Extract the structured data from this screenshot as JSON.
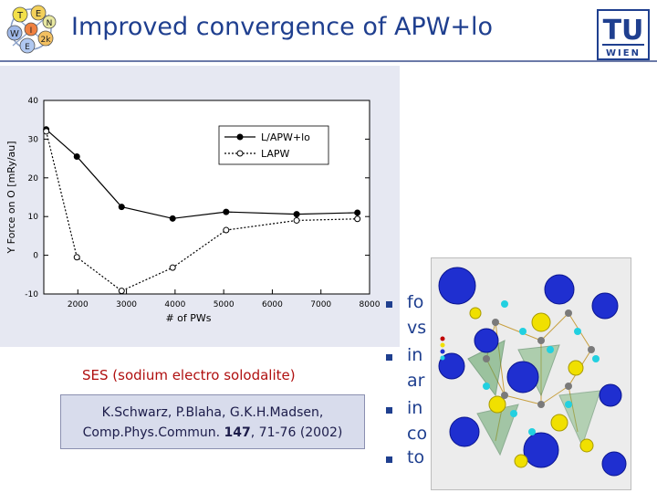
{
  "title": "Improved convergence of APW+lo",
  "chart_data": {
    "type": "line",
    "xlabel": "# of PWs",
    "ylabel": "Y Force on O [mRy/au]",
    "xlim": [
      1300,
      8000
    ],
    "ylim": [
      -10,
      40
    ],
    "xticks": [
      2000,
      3000,
      4000,
      5000,
      6000,
      7000,
      8000
    ],
    "xtick_labels": [
      "2000",
      "3000",
      "4000",
      "5000",
      "6000",
      "7000",
      "8000"
    ],
    "yticks": [
      -10,
      0,
      10,
      20,
      30,
      40
    ],
    "ytick_labels": [
      "-10",
      "0",
      "10",
      "20",
      "30",
      "40"
    ],
    "legend_position": "top-right",
    "series": [
      {
        "name": "L/APW+lo",
        "style": "solid",
        "marker": "filled-circle",
        "color": "#000000",
        "x": [
          1350,
          1980,
          2900,
          3950,
          5050,
          6500,
          7750
        ],
        "y": [
          32.5,
          25.5,
          12.5,
          9.5,
          11.2,
          10.6,
          11.0
        ]
      },
      {
        "name": "LAPW",
        "style": "dotted",
        "marker": "open-circle",
        "color": "#000000",
        "x": [
          1350,
          1980,
          2900,
          3950,
          5050,
          6500,
          7750
        ],
        "y": [
          32.0,
          -0.5,
          -9.2,
          -3.2,
          6.5,
          9.0,
          9.4
        ]
      }
    ]
  },
  "ses_label": "SES (sodium electro solodalite)",
  "citation": {
    "line1": "K.Schwarz, P.Blaha, G.K.H.Madsen,",
    "line2_prefix": "Comp.Phys.Commun. ",
    "line2_volume": "147",
    "line2_suffix": ", 71-76 (2002)"
  },
  "bullets": [
    {
      "lines": [
        "fo",
        "vs"
      ]
    },
    {
      "lines": [
        "in",
        "ar"
      ]
    },
    {
      "lines": [
        "in",
        "co"
      ]
    },
    {
      "lines": [
        "to"
      ]
    }
  ],
  "colors": {
    "title": "#1f3f8f",
    "accent_red": "#b01010",
    "chart_panel": "#e6e8f2",
    "atom_blue": "#1f2fd0",
    "atom_yellow": "#f0e000"
  },
  "logo_right_text": [
    "TU",
    "WIEN"
  ],
  "logo_left_letters": [
    "T",
    "E",
    "N",
    "W",
    "2k",
    "I",
    "E"
  ]
}
